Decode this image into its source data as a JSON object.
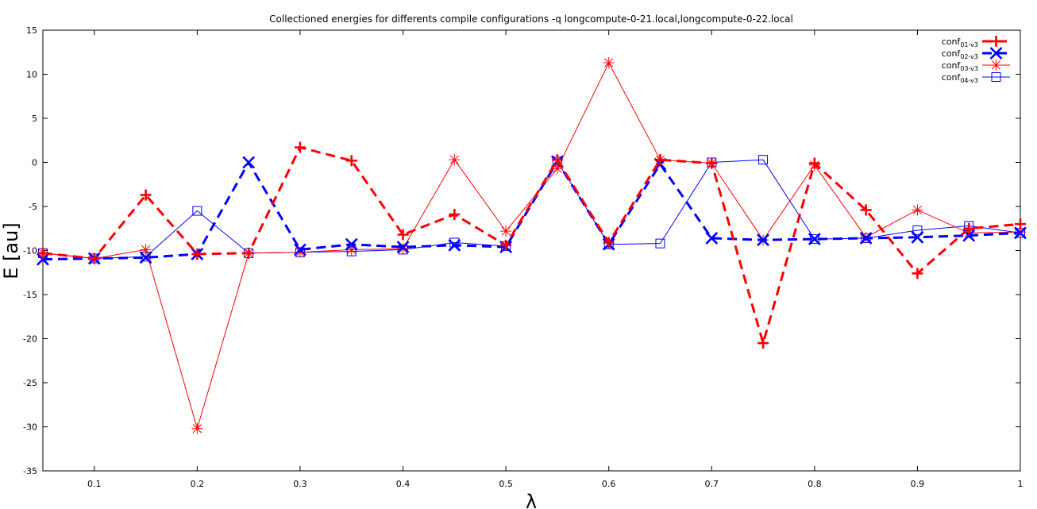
{
  "chart_data": {
    "type": "line",
    "title": "Collectioned energies for differents compile configurations -q longcompute-0-21.local,longcompute-0-22.local",
    "xlabel": "λ",
    "ylabel": "E [au]",
    "xlim": [
      0.05,
      1.0
    ],
    "ylim": [
      -35,
      15
    ],
    "x_ticks": [
      0.1,
      0.2,
      0.3,
      0.4,
      0.5,
      0.6,
      0.7,
      0.8,
      0.9,
      1
    ],
    "x_tick_labels": [
      "0.1",
      "0.2",
      "0.3",
      "0.4",
      "0.5",
      "0.6",
      "0.7",
      "0.8",
      "0.9",
      "1"
    ],
    "y_ticks": [
      15,
      10,
      5,
      0,
      -5,
      -10,
      -15,
      -20,
      -25,
      -30,
      -35
    ],
    "y_tick_labels": [
      "15",
      "10",
      "5",
      "0",
      "-5",
      "-10",
      "-15",
      "-20",
      "-25",
      "-30",
      "-35"
    ],
    "legend_position": "top-right",
    "grid": false,
    "x": [
      0.05,
      0.1,
      0.15,
      0.2,
      0.25,
      0.3,
      0.35,
      0.4,
      0.45,
      0.5,
      0.55,
      0.6,
      0.65,
      0.7,
      0.75,
      0.8,
      0.85,
      0.9,
      0.95,
      1.0
    ],
    "series": [
      {
        "legend_base": "conf",
        "legend_sub": "01-v3",
        "color": "#ff0000",
        "dash": "dashed",
        "marker": "plus",
        "weight": "thick",
        "values": [
          -10.3,
          -10.9,
          -3.7,
          -10.4,
          -10.3,
          1.7,
          0.2,
          -8.2,
          -5.9,
          -9.4,
          0.3,
          -9.1,
          0.3,
          -0.1,
          -20.5,
          -0.1,
          -5.4,
          -12.6,
          -7.5,
          -7.0
        ]
      },
      {
        "legend_base": "conf",
        "legend_sub": "02-v3",
        "color": "#0000ff",
        "dash": "dashed",
        "marker": "cross",
        "weight": "thick",
        "values": [
          -11.0,
          -10.9,
          -10.8,
          -10.4,
          0.0,
          -9.9,
          -9.3,
          -9.6,
          -9.4,
          -9.6,
          0.1,
          -9.3,
          -0.2,
          -8.6,
          -8.8,
          -8.7,
          -8.6,
          -8.5,
          -8.3,
          -8.0
        ]
      },
      {
        "legend_base": "conf",
        "legend_sub": "03-v3",
        "color": "#ff0000",
        "dash": "solid",
        "marker": "star",
        "weight": "thin",
        "values": [
          -10.3,
          -10.9,
          -9.9,
          -30.2,
          -10.3,
          -10.2,
          -9.9,
          -9.8,
          0.3,
          -7.8,
          -0.7,
          11.3,
          0.3,
          -0.1,
          -8.8,
          -0.3,
          -8.5,
          -5.4,
          -8.0,
          -7.9
        ]
      },
      {
        "legend_base": "conf",
        "legend_sub": "04-v3",
        "color": "#0000ff",
        "dash": "solid",
        "marker": "square",
        "weight": "thin",
        "values": [
          -10.3,
          -10.9,
          -10.7,
          -5.5,
          -10.3,
          -10.2,
          -10.1,
          -9.9,
          -9.1,
          -9.5,
          0.1,
          -9.3,
          -9.2,
          0.0,
          0.3,
          -8.7,
          -8.6,
          -7.7,
          -7.2,
          -8.0
        ]
      }
    ]
  }
}
